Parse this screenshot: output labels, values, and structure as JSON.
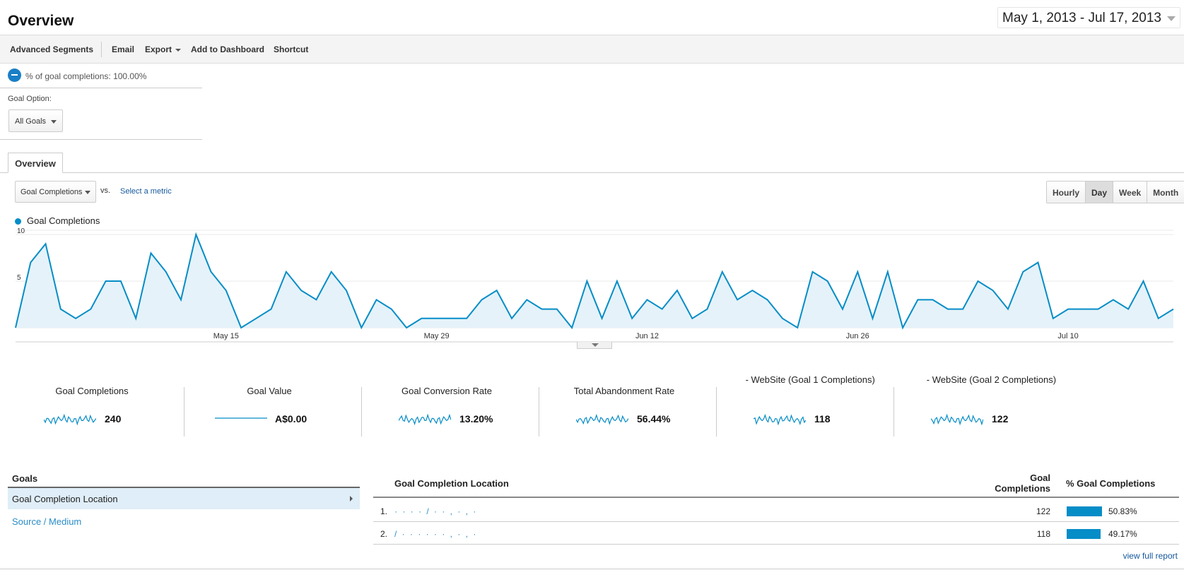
{
  "header": {
    "title": "Overview",
    "date_range": "May 1, 2013 - Jul 17, 2013"
  },
  "toolbar": {
    "advanced_segments": "Advanced Segments",
    "email": "Email",
    "export": "Export",
    "add_to_dashboard": "Add to Dashboard",
    "shortcut": "Shortcut"
  },
  "segment": {
    "label": "% of goal completions: 100.00%"
  },
  "goal_option": {
    "label": "Goal Option:",
    "selected": "All Goals"
  },
  "tabs": {
    "overview": "Overview"
  },
  "chart_controls": {
    "metric": "Goal Completions",
    "vs": "vs.",
    "select_metric": "Select a metric",
    "granularity": [
      "Hourly",
      "Day",
      "Week",
      "Month"
    ],
    "active_granularity": "Day"
  },
  "chart_data": {
    "type": "area",
    "series": [
      {
        "name": "Goal Completions",
        "values": [
          0,
          7,
          9,
          2,
          1,
          2,
          5,
          5,
          1,
          8,
          6,
          3,
          10,
          6,
          4,
          0,
          1,
          2,
          6,
          4,
          3,
          6,
          4,
          0,
          3,
          2,
          0,
          1,
          1,
          1,
          1,
          3,
          4,
          1,
          3,
          2,
          2,
          0,
          5,
          1,
          5,
          1,
          3,
          2,
          4,
          1,
          2,
          6,
          3,
          4,
          3,
          1,
          0,
          6,
          5,
          2,
          6,
          1,
          6,
          0,
          3,
          3,
          2,
          2,
          5,
          4,
          2,
          6,
          7,
          1,
          2,
          2,
          2,
          3,
          2,
          5,
          1,
          2
        ]
      }
    ],
    "x_start": "2013-05-01",
    "x_ticks": [
      "May 15",
      "May 29",
      "Jun 12",
      "Jun 26",
      "Jul 10"
    ],
    "y_ticks": [
      5,
      10
    ],
    "ylim": [
      0,
      10
    ],
    "color": "#058dc7",
    "fill": "#e5f2f9",
    "legend_position": "top-left",
    "grid": true
  },
  "scorecards": [
    {
      "title": "Goal Completions",
      "value": "240",
      "spark": "wave"
    },
    {
      "title": "Goal Value",
      "value": "A$0.00",
      "spark": "flat"
    },
    {
      "title": "Goal Conversion Rate",
      "value": "13.20%",
      "spark": "wave"
    },
    {
      "title": "Total Abandonment Rate",
      "value": "56.44%",
      "spark": "dense"
    },
    {
      "title": "         - WebSite (Goal 1 Completions)",
      "value": "118",
      "spark": "wave"
    },
    {
      "title": "             - WebSite (Goal 2 Completions)",
      "value": "122",
      "spark": "wave"
    }
  ],
  "goals_panel": {
    "title": "Goals",
    "items": [
      "Goal Completion Location",
      "Source / Medium"
    ]
  },
  "report_table": {
    "headers": [
      "Goal Completion Location",
      "Goal Completions",
      "% Goal Completions"
    ],
    "rows": [
      {
        "rank": "1.",
        "location": "· · · · / · · , · , ·",
        "completions": "122",
        "percent": "50.83%",
        "fraction": 0.5083
      },
      {
        "rank": "2.",
        "location": "/ · · · · · · , · , ·",
        "completions": "118",
        "percent": "49.17%",
        "fraction": 0.4917
      }
    ],
    "view_full_report": "view full report"
  }
}
